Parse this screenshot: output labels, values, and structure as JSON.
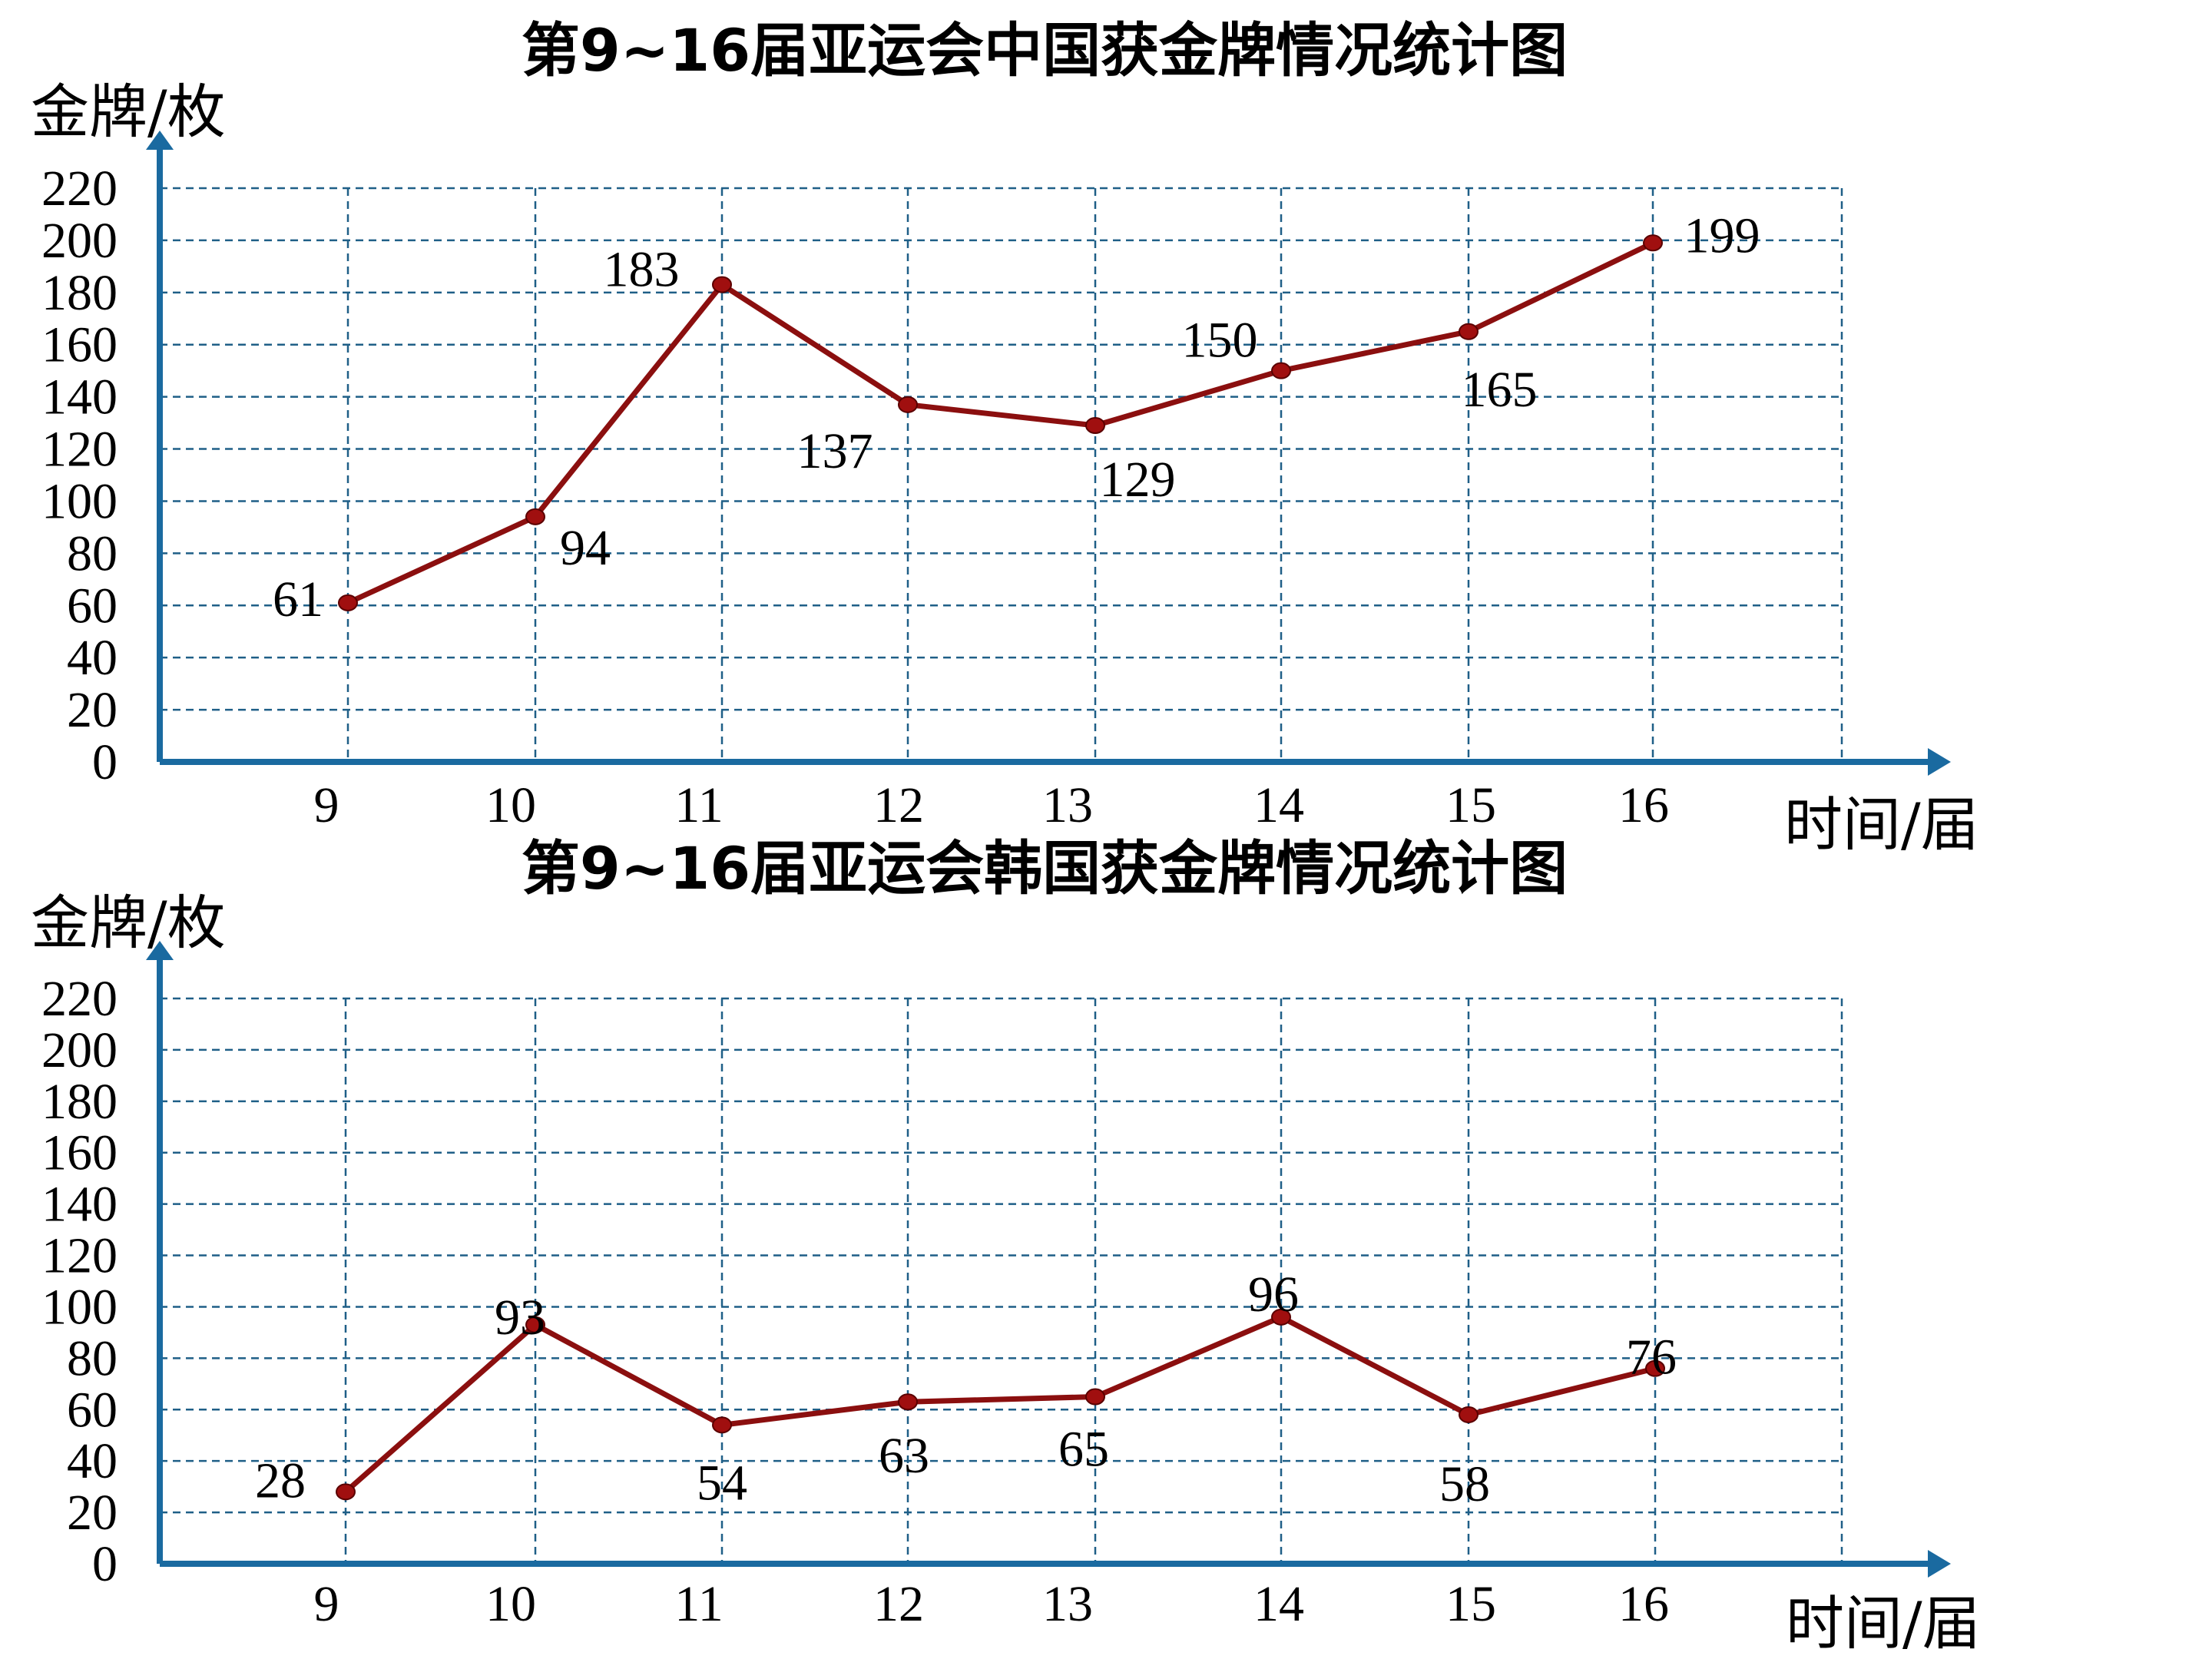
{
  "chart_data": [
    {
      "type": "line",
      "title": "第9~16届亚运会中国获金牌情况统计图",
      "ylabel": "金牌/枚",
      "xlabel": "时间/届",
      "categories": [
        "9",
        "10",
        "11",
        "12",
        "13",
        "14",
        "15",
        "16"
      ],
      "values": [
        61,
        94,
        183,
        137,
        129,
        150,
        165,
        199
      ],
      "data_labels": [
        "61",
        "94",
        "183",
        "137",
        "129",
        "150",
        "165",
        "199"
      ],
      "yticks": [
        "0",
        "20",
        "40",
        "60",
        "80",
        "100",
        "120",
        "140",
        "160",
        "180",
        "200",
        "220"
      ],
      "ylim": [
        0,
        220
      ],
      "grid": true,
      "colors": {
        "line": "#8b0f0f",
        "axis": "#1a6aa0",
        "grid": "#1f5f87"
      }
    },
    {
      "type": "line",
      "title": "第9~16届亚运会韩国获金牌情况统计图",
      "ylabel": "金牌/枚",
      "xlabel": "时间/届",
      "categories": [
        "9",
        "10",
        "11",
        "12",
        "13",
        "14",
        "15",
        "16"
      ],
      "values": [
        28,
        93,
        54,
        63,
        65,
        96,
        58,
        76
      ],
      "data_labels": [
        "28",
        "93",
        "54",
        "63",
        "65",
        "96",
        "58",
        "76"
      ],
      "yticks": [
        "0",
        "20",
        "40",
        "60",
        "80",
        "100",
        "120",
        "140",
        "160",
        "180",
        "200",
        "220"
      ],
      "ylim": [
        0,
        220
      ],
      "grid": true,
      "colors": {
        "line": "#8b0f0f",
        "axis": "#1a6aa0",
        "grid": "#1f5f87"
      }
    }
  ]
}
